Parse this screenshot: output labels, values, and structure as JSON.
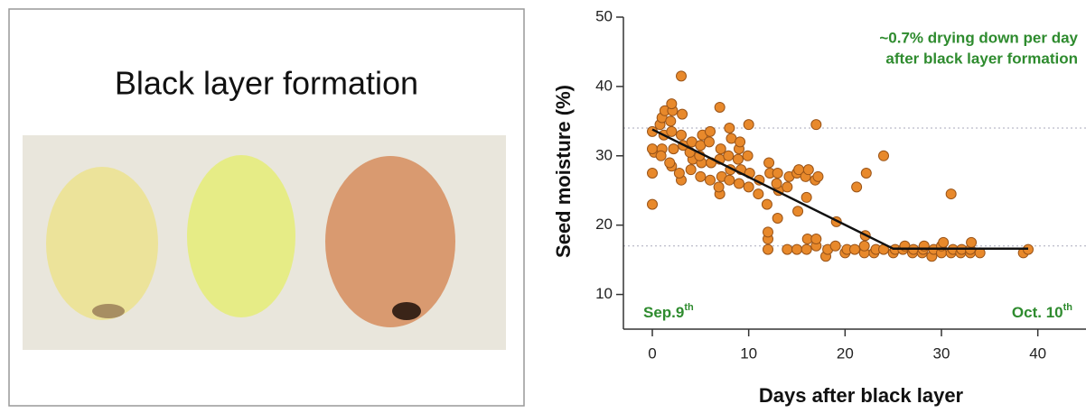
{
  "photo_panel": {
    "title": "Black layer formation"
  },
  "chart_data": {
    "type": "scatter",
    "x_label": "Days after black layer",
    "y_label": "Seed moisture (%)",
    "annotation_lines": [
      "~0.7% drying down per day",
      "after black layer formation"
    ],
    "start_label": {
      "text": "Sep.9",
      "sup": "th"
    },
    "end_label": {
      "text": "Oct. 10",
      "sup": "th"
    },
    "xlim": [
      -3,
      45
    ],
    "ylim": [
      5,
      50
    ],
    "xticks": [
      0,
      10,
      20,
      30,
      40
    ],
    "yticks": [
      10,
      20,
      30,
      40,
      50
    ],
    "color": "#e8892b",
    "line_color": "#111111",
    "reference_lines": [
      34,
      17
    ],
    "x": [
      0,
      0,
      0.2,
      0,
      0,
      1,
      1.2,
      0.8,
      1,
      1.3,
      0.9,
      2,
      1.8,
      2.2,
      2,
      1.9,
      2.1,
      2,
      3,
      2.8,
      3.2,
      3,
      3.1,
      3,
      4,
      4.2,
      3.9,
      4.1,
      5,
      5.1,
      4.9,
      5,
      5.2,
      6,
      6.1,
      5.9,
      6,
      7,
      6.9,
      7.2,
      7,
      7.1,
      7,
      8,
      8.1,
      7.9,
      8.2,
      8,
      9,
      9.2,
      8.9,
      9,
      9.1,
      10,
      10.1,
      9.9,
      10,
      11,
      11.1,
      12,
      12,
      12,
      11.9,
      12.2,
      12.1,
      13,
      13.1,
      12.9,
      13,
      14,
      14,
      14.2,
      15,
      15.1,
      15,
      15.2,
      16,
      16.1,
      16,
      15.9,
      16.2,
      17,
      17,
      16.9,
      17.2,
      17,
      18,
      18.2,
      19,
      19.1,
      20,
      20.2,
      21,
      21.2,
      22,
      22,
      22.1,
      22.2,
      23,
      23.2,
      24,
      24,
      25,
      25.2,
      26,
      26.2,
      27,
      27.1,
      28,
      28.1,
      28.2,
      29,
      29.2,
      30,
      30,
      30.2,
      31,
      31.2,
      31,
      32,
      32.1,
      33,
      33,
      33.1,
      34,
      38.5,
      39
    ],
    "y": [
      23,
      27.5,
      30.5,
      31,
      33.5,
      31,
      33,
      34.5,
      35.5,
      36.5,
      30,
      28.5,
      29,
      31,
      33.5,
      35,
      36.5,
      37.5,
      26.5,
      27.5,
      31.5,
      33,
      36,
      41.5,
      28,
      29.5,
      30.5,
      32,
      27,
      29,
      30,
      31.5,
      33,
      26.5,
      29,
      32,
      33.5,
      24.5,
      25.5,
      27,
      29.5,
      31,
      37,
      26.5,
      28,
      30,
      32.5,
      34,
      26,
      28,
      29.5,
      31,
      32,
      25.5,
      27.5,
      30,
      34.5,
      24.5,
      26.5,
      16.5,
      18,
      19,
      23,
      27.5,
      29,
      21,
      25,
      26,
      27.5,
      16.5,
      25.5,
      27,
      16.5,
      22,
      27.5,
      28,
      16.5,
      18,
      24,
      27,
      28,
      17,
      18,
      26.5,
      27,
      34.5,
      15.5,
      16.5,
      17,
      20.5,
      16,
      16.5,
      16.5,
      25.5,
      16,
      17,
      18.5,
      27.5,
      16,
      16.5,
      16.5,
      30,
      16,
      16.5,
      16.5,
      17,
      16,
      16.5,
      16,
      16.5,
      17,
      15.5,
      16.5,
      16,
      17,
      17.5,
      16,
      16.5,
      24.5,
      16,
      16.5,
      16,
      16.5,
      17.5,
      16,
      16,
      16.5
    ],
    "fit_line": {
      "x": [
        0,
        25,
        39
      ],
      "y": [
        33.8,
        16.6,
        16.6
      ]
    }
  }
}
